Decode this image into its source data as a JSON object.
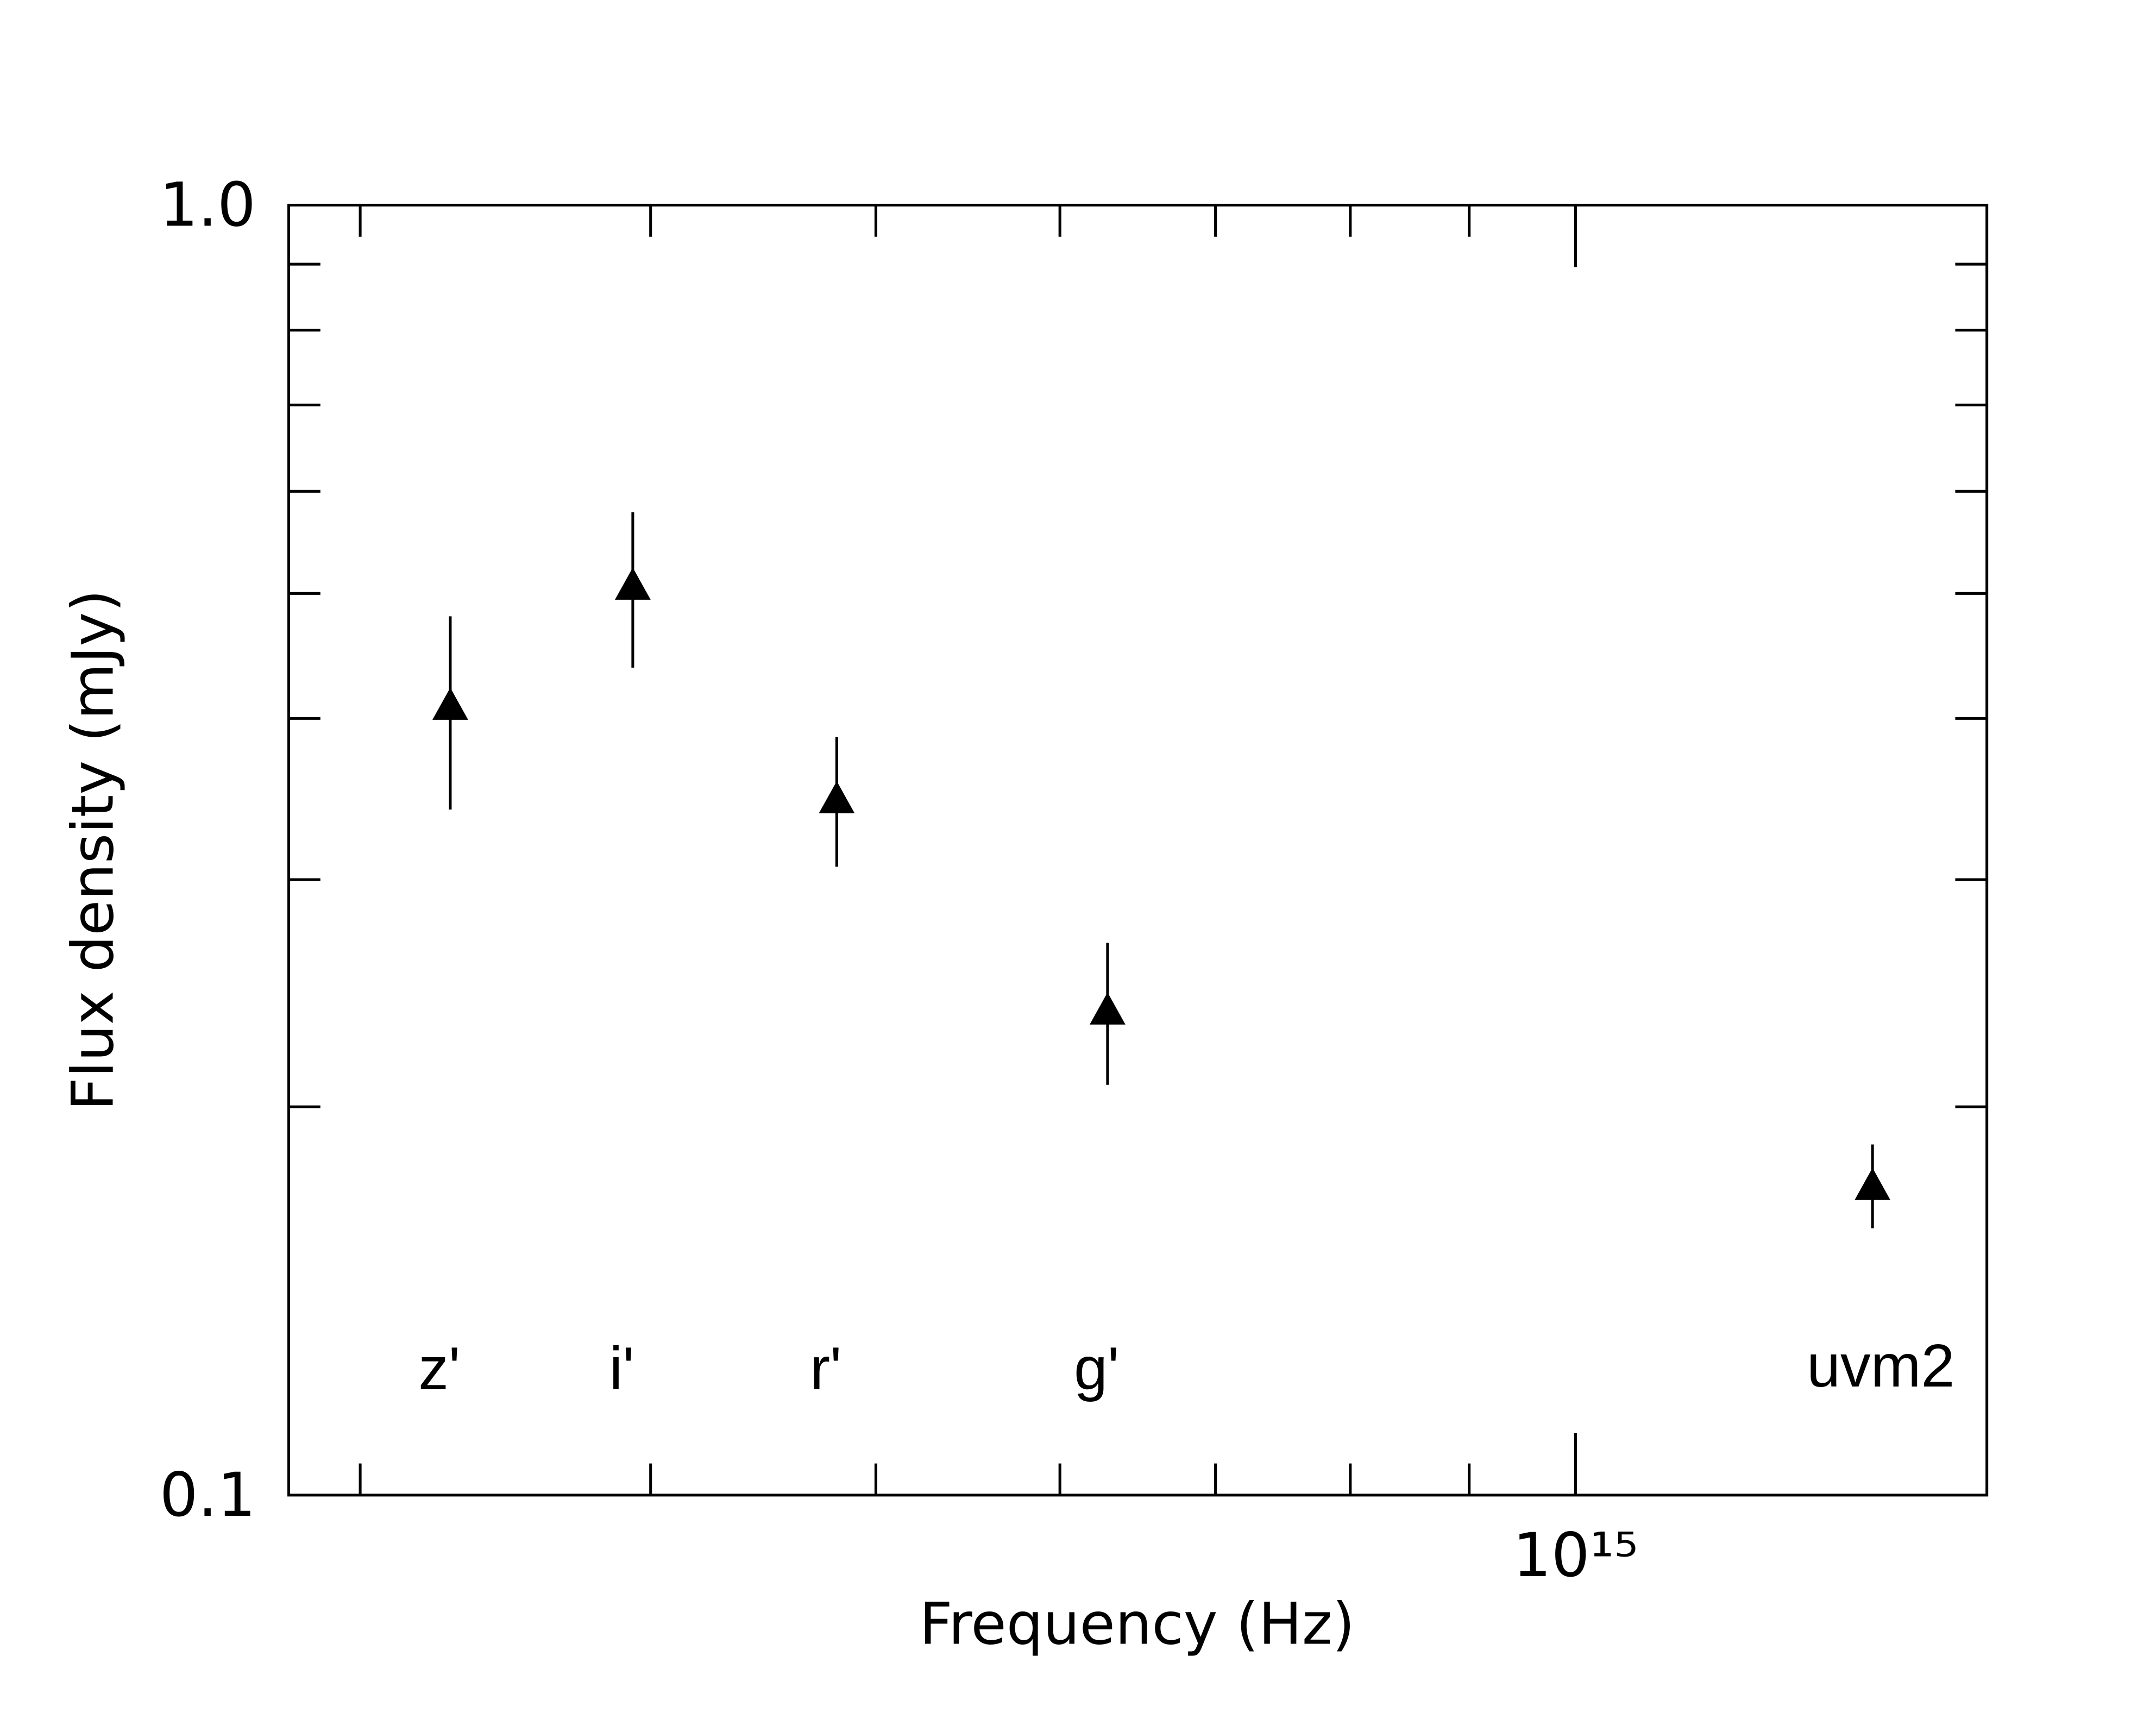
{
  "chart_data": {
    "type": "scatter",
    "x_label": "Frequency (Hz)",
    "y_label": "Flux density (mJy)",
    "x": [
      328000000000000,
      393000000000000,
      481000000000000,
      629000000000000,
      1342000000000000
    ],
    "values": [
      0.41,
      0.508,
      0.347,
      0.238,
      0.174
    ],
    "errors": [
      0.07,
      0.07,
      0.04,
      0.03,
      0.013
    ],
    "labels": [
      "z'",
      "i'",
      "r'",
      "g'",
      "uvm2"
    ],
    "color": "#000000",
    "marker": "triangle",
    "xlog": true,
    "ylog": true,
    "xlim": [
      279500000000000,
      1503000000000000
    ],
    "ylim": [
      0.1,
      1
    ],
    "xticks": [
      {
        "value": 1000000000000000,
        "label": "10¹⁵"
      }
    ],
    "xminor": [
      300000000000000,
      400000000000000,
      500000000000000,
      600000000000000,
      700000000000000,
      800000000000000,
      900000000000000
    ],
    "yticks": [
      0.1,
      {
        "value": 1,
        "label": "1.0"
      }
    ],
    "yminor": [
      0.2,
      0.3,
      0.4,
      0.5,
      0.6,
      0.7,
      0.8,
      0.9
    ]
  }
}
